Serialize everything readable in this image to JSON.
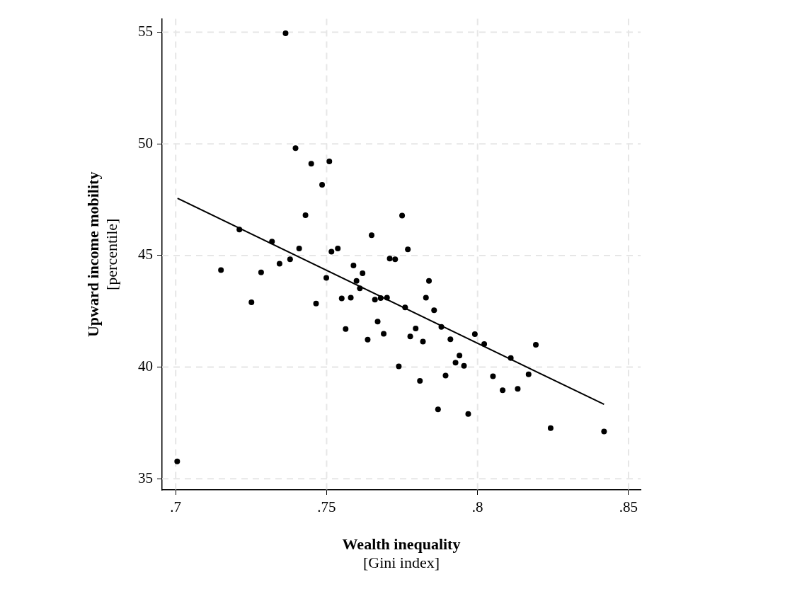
{
  "chart_data": {
    "type": "scatter",
    "xlabel": "Wealth inequality\n[Gini index]",
    "ylabel": "Upward income mobility\n[percentile]",
    "xlim": [
      0.6955,
      0.854
    ],
    "ylim": [
      34.5,
      55.6
    ],
    "xticks": [
      {
        "value": 0.7,
        "label": ".7"
      },
      {
        "value": 0.75,
        "label": ".75"
      },
      {
        "value": 0.8,
        "label": ".8"
      },
      {
        "value": 0.85,
        "label": ".85"
      }
    ],
    "yticks": [
      35,
      40,
      45,
      50,
      55
    ],
    "grid": true,
    "series": [
      {
        "marker": "circle",
        "color": "#000000",
        "x": [
          0.7364,
          0.7397,
          0.7449,
          0.7509,
          0.7485,
          0.743,
          0.7211,
          0.7319,
          0.7409,
          0.7516,
          0.715,
          0.7344,
          0.7379,
          0.7283,
          0.7499,
          0.7251,
          0.7465,
          0.775,
          0.7649,
          0.7537,
          0.7769,
          0.7709,
          0.7727,
          0.7589,
          0.7619,
          0.7599,
          0.761,
          0.755,
          0.758,
          0.766,
          0.7679,
          0.77,
          0.776,
          0.7669,
          0.7689,
          0.7563,
          0.7636,
          0.7739,
          0.7777,
          0.7005,
          0.7839,
          0.7829,
          0.7856,
          0.7795,
          0.7819,
          0.788,
          0.791,
          0.7991,
          0.8022,
          0.8193,
          0.811,
          0.794,
          0.7927,
          0.7955,
          0.8169,
          0.7894,
          0.8051,
          0.7809,
          0.8133,
          0.8083,
          0.7869,
          0.7969,
          0.8242,
          0.8419
        ],
        "values": [
          54.95,
          49.81,
          49.11,
          49.21,
          48.17,
          46.8,
          46.16,
          45.62,
          45.31,
          45.17,
          44.35,
          44.63,
          44.83,
          44.24,
          44.0,
          42.9,
          42.85,
          46.79,
          45.91,
          45.31,
          45.27,
          44.86,
          44.83,
          44.55,
          44.2,
          43.86,
          43.53,
          43.08,
          43.11,
          43.02,
          43.09,
          43.11,
          42.67,
          42.04,
          41.49,
          41.71,
          41.23,
          40.03,
          41.37,
          35.78,
          43.86,
          43.11,
          42.55,
          41.73,
          41.14,
          41.8,
          41.25,
          41.48,
          41.03,
          41.0,
          40.41,
          40.52,
          40.2,
          40.06,
          39.68,
          39.62,
          39.59,
          39.38,
          39.03,
          38.96,
          38.11,
          37.9,
          37.27,
          37.12
        ]
      },
      {
        "type": "line",
        "color": "#000000",
        "x": [
          0.7006,
          0.8419
        ],
        "values": [
          47.56,
          38.33
        ]
      }
    ]
  }
}
